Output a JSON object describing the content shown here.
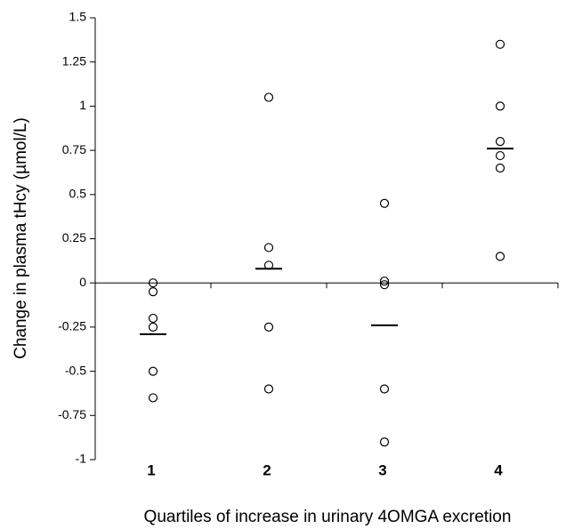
{
  "chart_data": {
    "type": "dot",
    "y_label": "Change in plasma tHcy (µmol/L)",
    "x_label": "Quartiles of increase in urinary 4OMGA excretion",
    "categories": [
      "1",
      "2",
      "3",
      "4"
    ],
    "points": [
      [
        0,
        -0.05,
        -0.2,
        -0.25,
        -0.5,
        -0.65
      ],
      [
        1.05,
        0.2,
        0.1,
        -0.25,
        -0.6
      ],
      [
        0.45,
        0.01,
        -0.01,
        -0.6,
        -0.9
      ],
      [
        1.35,
        1.0,
        0.8,
        0.72,
        0.65,
        0.15
      ]
    ],
    "means": [
      -0.29,
      0.08,
      -0.24,
      0.76
    ],
    "color": "#000000",
    "ylim": [
      -1,
      1.5
    ],
    "yticks": [
      1.5,
      1.25,
      1,
      0.75,
      0.5,
      0.25,
      0,
      -0.25,
      -0.5,
      -0.75,
      -1
    ]
  }
}
